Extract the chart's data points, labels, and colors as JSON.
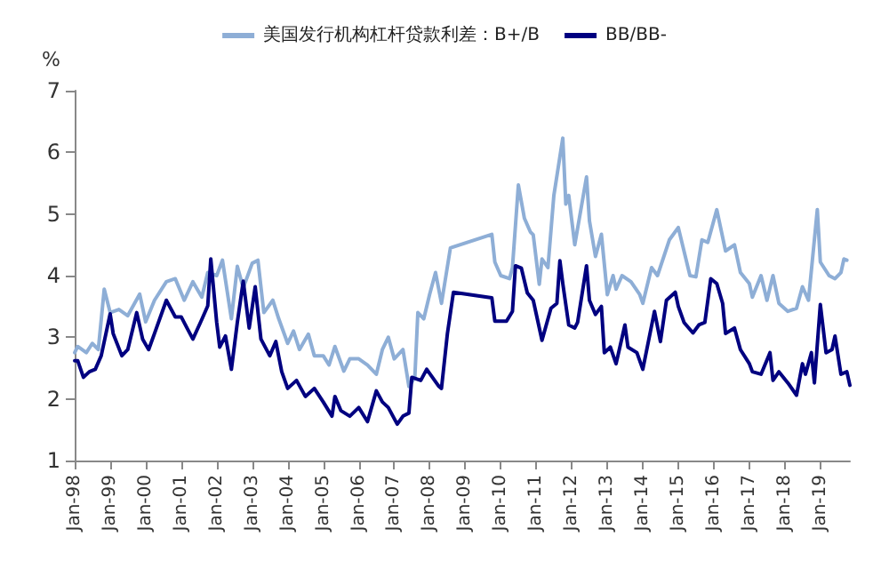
{
  "chart_data": {
    "type": "line",
    "ylabel": "%",
    "xlim": [
      "1998-01",
      "2019-11"
    ],
    "ylim": [
      1,
      7
    ],
    "yticks": [
      1,
      2,
      3,
      4,
      5,
      6,
      7
    ],
    "xticks": [
      {
        "value": "1998-01",
        "label": "Jan-98"
      },
      {
        "value": "1999-01",
        "label": "Jan-99"
      },
      {
        "value": "2000-01",
        "label": "Jan-00"
      },
      {
        "value": "2001-01",
        "label": "Jan-01"
      },
      {
        "value": "2002-01",
        "label": "Jan-02"
      },
      {
        "value": "2003-01",
        "label": "Jan-03"
      },
      {
        "value": "2004-01",
        "label": "Jan-04"
      },
      {
        "value": "2005-01",
        "label": "Jan-05"
      },
      {
        "value": "2006-01",
        "label": "Jan-06"
      },
      {
        "value": "2007-01",
        "label": "Jan-07"
      },
      {
        "value": "2008-01",
        "label": "Jan-08"
      },
      {
        "value": "2009-01",
        "label": "Jan-09"
      },
      {
        "value": "2010-01",
        "label": "Jan-10"
      },
      {
        "value": "2011-01",
        "label": "Jan-11"
      },
      {
        "value": "2012-01",
        "label": "Jan-12"
      },
      {
        "value": "2013-01",
        "label": "Jan-13"
      },
      {
        "value": "2014-01",
        "label": "Jan-14"
      },
      {
        "value": "2015-01",
        "label": "Jan-15"
      },
      {
        "value": "2016-01",
        "label": "Jan-16"
      },
      {
        "value": "2017-01",
        "label": "Jan-17"
      },
      {
        "value": "2018-01",
        "label": "Jan-18"
      },
      {
        "value": "2019-01",
        "label": "Jan-19"
      }
    ],
    "legend": "top",
    "grid": false,
    "marker": "none",
    "line_style": "solid",
    "series": [
      {
        "name": "美国发行机构杠杆贷款利差：B+/B",
        "color": "#8eaed6",
        "x": [
          "1998-01",
          "1998-02",
          "1998-05",
          "1998-07",
          "1998-09",
          "1998-11",
          "1999-01",
          "1999-04",
          "1999-07",
          "1999-11",
          "2000-01",
          "2000-04",
          "2000-08",
          "2000-11",
          "2001-02",
          "2001-05",
          "2001-08",
          "2001-10",
          "2002-01",
          "2002-03",
          "2002-06",
          "2002-08",
          "2002-10",
          "2003-01",
          "2003-03",
          "2003-05",
          "2003-08",
          "2003-10",
          "2004-01",
          "2004-03",
          "2004-05",
          "2004-08",
          "2004-10",
          "2005-01",
          "2005-03",
          "2005-05",
          "2005-08",
          "2005-10",
          "2006-01",
          "2006-04",
          "2006-07",
          "2006-09",
          "2006-11",
          "2007-01",
          "2007-04",
          "2007-06",
          "2007-08",
          "2007-09",
          "2007-11",
          "2008-01",
          "2008-03",
          "2008-05",
          "2008-08",
          "2009-10",
          "2009-11",
          "2010-01",
          "2010-04",
          "2010-05",
          "2010-07",
          "2010-09",
          "2010-11",
          "2010-12",
          "2011-02",
          "2011-03",
          "2011-05",
          "2011-07",
          "2011-10",
          "2011-11",
          "2011-12",
          "2012-02",
          "2012-06",
          "2012-07",
          "2012-09",
          "2012-11",
          "2013-01",
          "2013-03",
          "2013-04",
          "2013-06",
          "2013-09",
          "2013-12",
          "2014-01",
          "2014-04",
          "2014-06",
          "2014-10",
          "2015-01",
          "2015-05",
          "2015-07",
          "2015-09",
          "2015-11",
          "2016-02",
          "2016-05",
          "2016-08",
          "2016-10",
          "2017-01",
          "2017-02",
          "2017-05",
          "2017-07",
          "2017-09",
          "2017-11",
          "2018-02",
          "2018-05",
          "2018-07",
          "2018-09",
          "2018-12",
          "2019-01",
          "2019-04",
          "2019-06",
          "2019-08",
          "2019-09",
          "2019-10"
        ],
        "values": [
          2.75,
          2.85,
          2.75,
          2.9,
          2.8,
          3.78,
          3.4,
          3.45,
          3.35,
          3.7,
          3.25,
          3.6,
          3.9,
          3.95,
          3.6,
          3.9,
          3.65,
          4.05,
          4.0,
          4.25,
          3.3,
          4.15,
          3.8,
          4.2,
          4.25,
          3.4,
          3.6,
          3.3,
          2.9,
          3.1,
          2.8,
          3.05,
          2.7,
          2.7,
          2.55,
          2.85,
          2.45,
          2.65,
          2.65,
          2.55,
          2.4,
          2.8,
          3.0,
          2.65,
          2.8,
          2.2,
          2.35,
          3.4,
          3.3,
          3.7,
          4.05,
          3.55,
          4.45,
          4.67,
          4.22,
          4.0,
          3.95,
          4.13,
          5.47,
          4.93,
          4.71,
          4.66,
          3.86,
          4.27,
          4.13,
          5.3,
          6.23,
          5.16,
          5.3,
          4.5,
          5.6,
          4.89,
          4.31,
          4.67,
          3.69,
          4.0,
          3.78,
          4.0,
          3.9,
          3.69,
          3.55,
          4.13,
          4.0,
          4.58,
          4.78,
          4.0,
          3.98,
          4.58,
          4.54,
          5.07,
          4.4,
          4.5,
          4.05,
          3.87,
          3.65,
          4.0,
          3.6,
          4.0,
          3.55,
          3.42,
          3.47,
          3.82,
          3.6,
          5.07,
          4.22,
          4.0,
          3.95,
          4.05,
          4.27,
          4.25
        ]
      },
      {
        "name": "BB/BB-",
        "color": "#000080",
        "x": [
          "1998-01",
          "1998-02",
          "1998-04",
          "1998-06",
          "1998-08",
          "1998-10",
          "1999-01",
          "1999-02",
          "1999-05",
          "1999-07",
          "1999-10",
          "1999-12",
          "2000-02",
          "2000-04",
          "2000-08",
          "2000-11",
          "2001-01",
          "2001-03",
          "2001-05",
          "2001-08",
          "2001-10",
          "2001-11",
          "2002-01",
          "2002-02",
          "2002-04",
          "2002-06",
          "2002-08",
          "2002-10",
          "2002-12",
          "2003-02",
          "2003-04",
          "2003-07",
          "2003-09",
          "2003-11",
          "2004-01",
          "2004-04",
          "2004-07",
          "2004-10",
          "2005-01",
          "2005-04",
          "2005-05",
          "2005-07",
          "2005-10",
          "2006-01",
          "2006-04",
          "2006-07",
          "2006-09",
          "2006-11",
          "2007-02",
          "2007-04",
          "2007-06",
          "2007-07",
          "2007-10",
          "2007-12",
          "2008-04",
          "2008-05",
          "2008-07",
          "2008-09",
          "2009-10",
          "2009-11",
          "2010-03",
          "2010-05",
          "2010-06",
          "2010-08",
          "2010-10",
          "2010-12",
          "2011-03",
          "2011-06",
          "2011-08",
          "2011-09",
          "2011-10",
          "2011-12",
          "2012-02",
          "2012-03",
          "2012-06",
          "2012-07",
          "2012-09",
          "2012-11",
          "2012-12",
          "2013-02",
          "2013-04",
          "2013-07",
          "2013-08",
          "2013-11",
          "2014-01",
          "2014-05",
          "2014-07",
          "2014-09",
          "2014-12",
          "2015-01",
          "2015-03",
          "2015-06",
          "2015-08",
          "2015-10",
          "2015-12",
          "2016-02",
          "2016-04",
          "2016-05",
          "2016-08",
          "2016-10",
          "2017-01",
          "2017-02",
          "2017-05",
          "2017-08",
          "2017-09",
          "2017-11",
          "2018-02",
          "2018-05",
          "2018-07",
          "2018-08",
          "2018-10",
          "2018-11",
          "2019-01",
          "2019-03",
          "2019-05",
          "2019-06",
          "2019-08",
          "2019-10",
          "2019-11"
        ],
        "values": [
          2.62,
          2.62,
          2.35,
          2.44,
          2.48,
          2.7,
          3.38,
          3.06,
          2.7,
          2.8,
          3.4,
          2.97,
          2.8,
          3.06,
          3.6,
          3.33,
          3.33,
          3.15,
          2.97,
          3.29,
          3.51,
          4.27,
          3.24,
          2.84,
          3.02,
          2.48,
          3.24,
          3.91,
          3.15,
          3.82,
          2.97,
          2.7,
          2.93,
          2.44,
          2.17,
          2.3,
          2.04,
          2.17,
          1.95,
          1.72,
          2.04,
          1.81,
          1.72,
          1.86,
          1.63,
          2.13,
          1.95,
          1.86,
          1.59,
          1.72,
          1.77,
          2.35,
          2.3,
          2.48,
          2.21,
          2.17,
          3.06,
          3.73,
          3.64,
          3.26,
          3.26,
          3.42,
          4.16,
          4.12,
          3.72,
          3.6,
          2.95,
          3.47,
          3.55,
          4.24,
          3.87,
          3.2,
          3.15,
          3.24,
          4.16,
          3.6,
          3.37,
          3.5,
          2.75,
          2.84,
          2.57,
          3.2,
          2.84,
          2.75,
          2.48,
          3.42,
          2.93,
          3.6,
          3.73,
          3.5,
          3.24,
          3.07,
          3.2,
          3.24,
          3.95,
          3.87,
          3.55,
          3.06,
          3.15,
          2.8,
          2.57,
          2.44,
          2.4,
          2.75,
          2.3,
          2.44,
          2.26,
          2.06,
          2.57,
          2.4,
          2.75,
          2.26,
          3.53,
          2.75,
          2.8,
          3.02,
          2.4,
          2.44,
          2.22
        ]
      }
    ]
  }
}
